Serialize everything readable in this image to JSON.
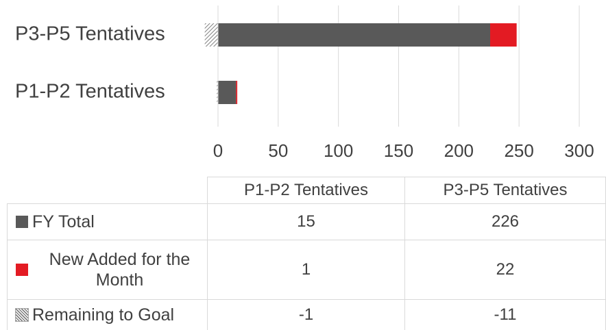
{
  "chart_data": {
    "type": "bar",
    "orientation": "horizontal",
    "stacked": true,
    "data_table": true,
    "categories": [
      "P1-P2 Tentatives",
      "P3-P5 Tentatives"
    ],
    "series": [
      {
        "name": "FY Total",
        "color": "#595959",
        "values": [
          15,
          226
        ]
      },
      {
        "name": "New Added for the Month",
        "color": "#e31b23",
        "values": [
          1,
          22
        ]
      },
      {
        "name": "Remaining to Goal",
        "color": "#a6a6a6",
        "hatch": true,
        "values": [
          -1,
          -11
        ]
      }
    ],
    "xlim": [
      0,
      300
    ],
    "xticks": [
      0,
      50,
      100,
      150,
      200,
      250,
      300
    ],
    "grid": true
  }
}
